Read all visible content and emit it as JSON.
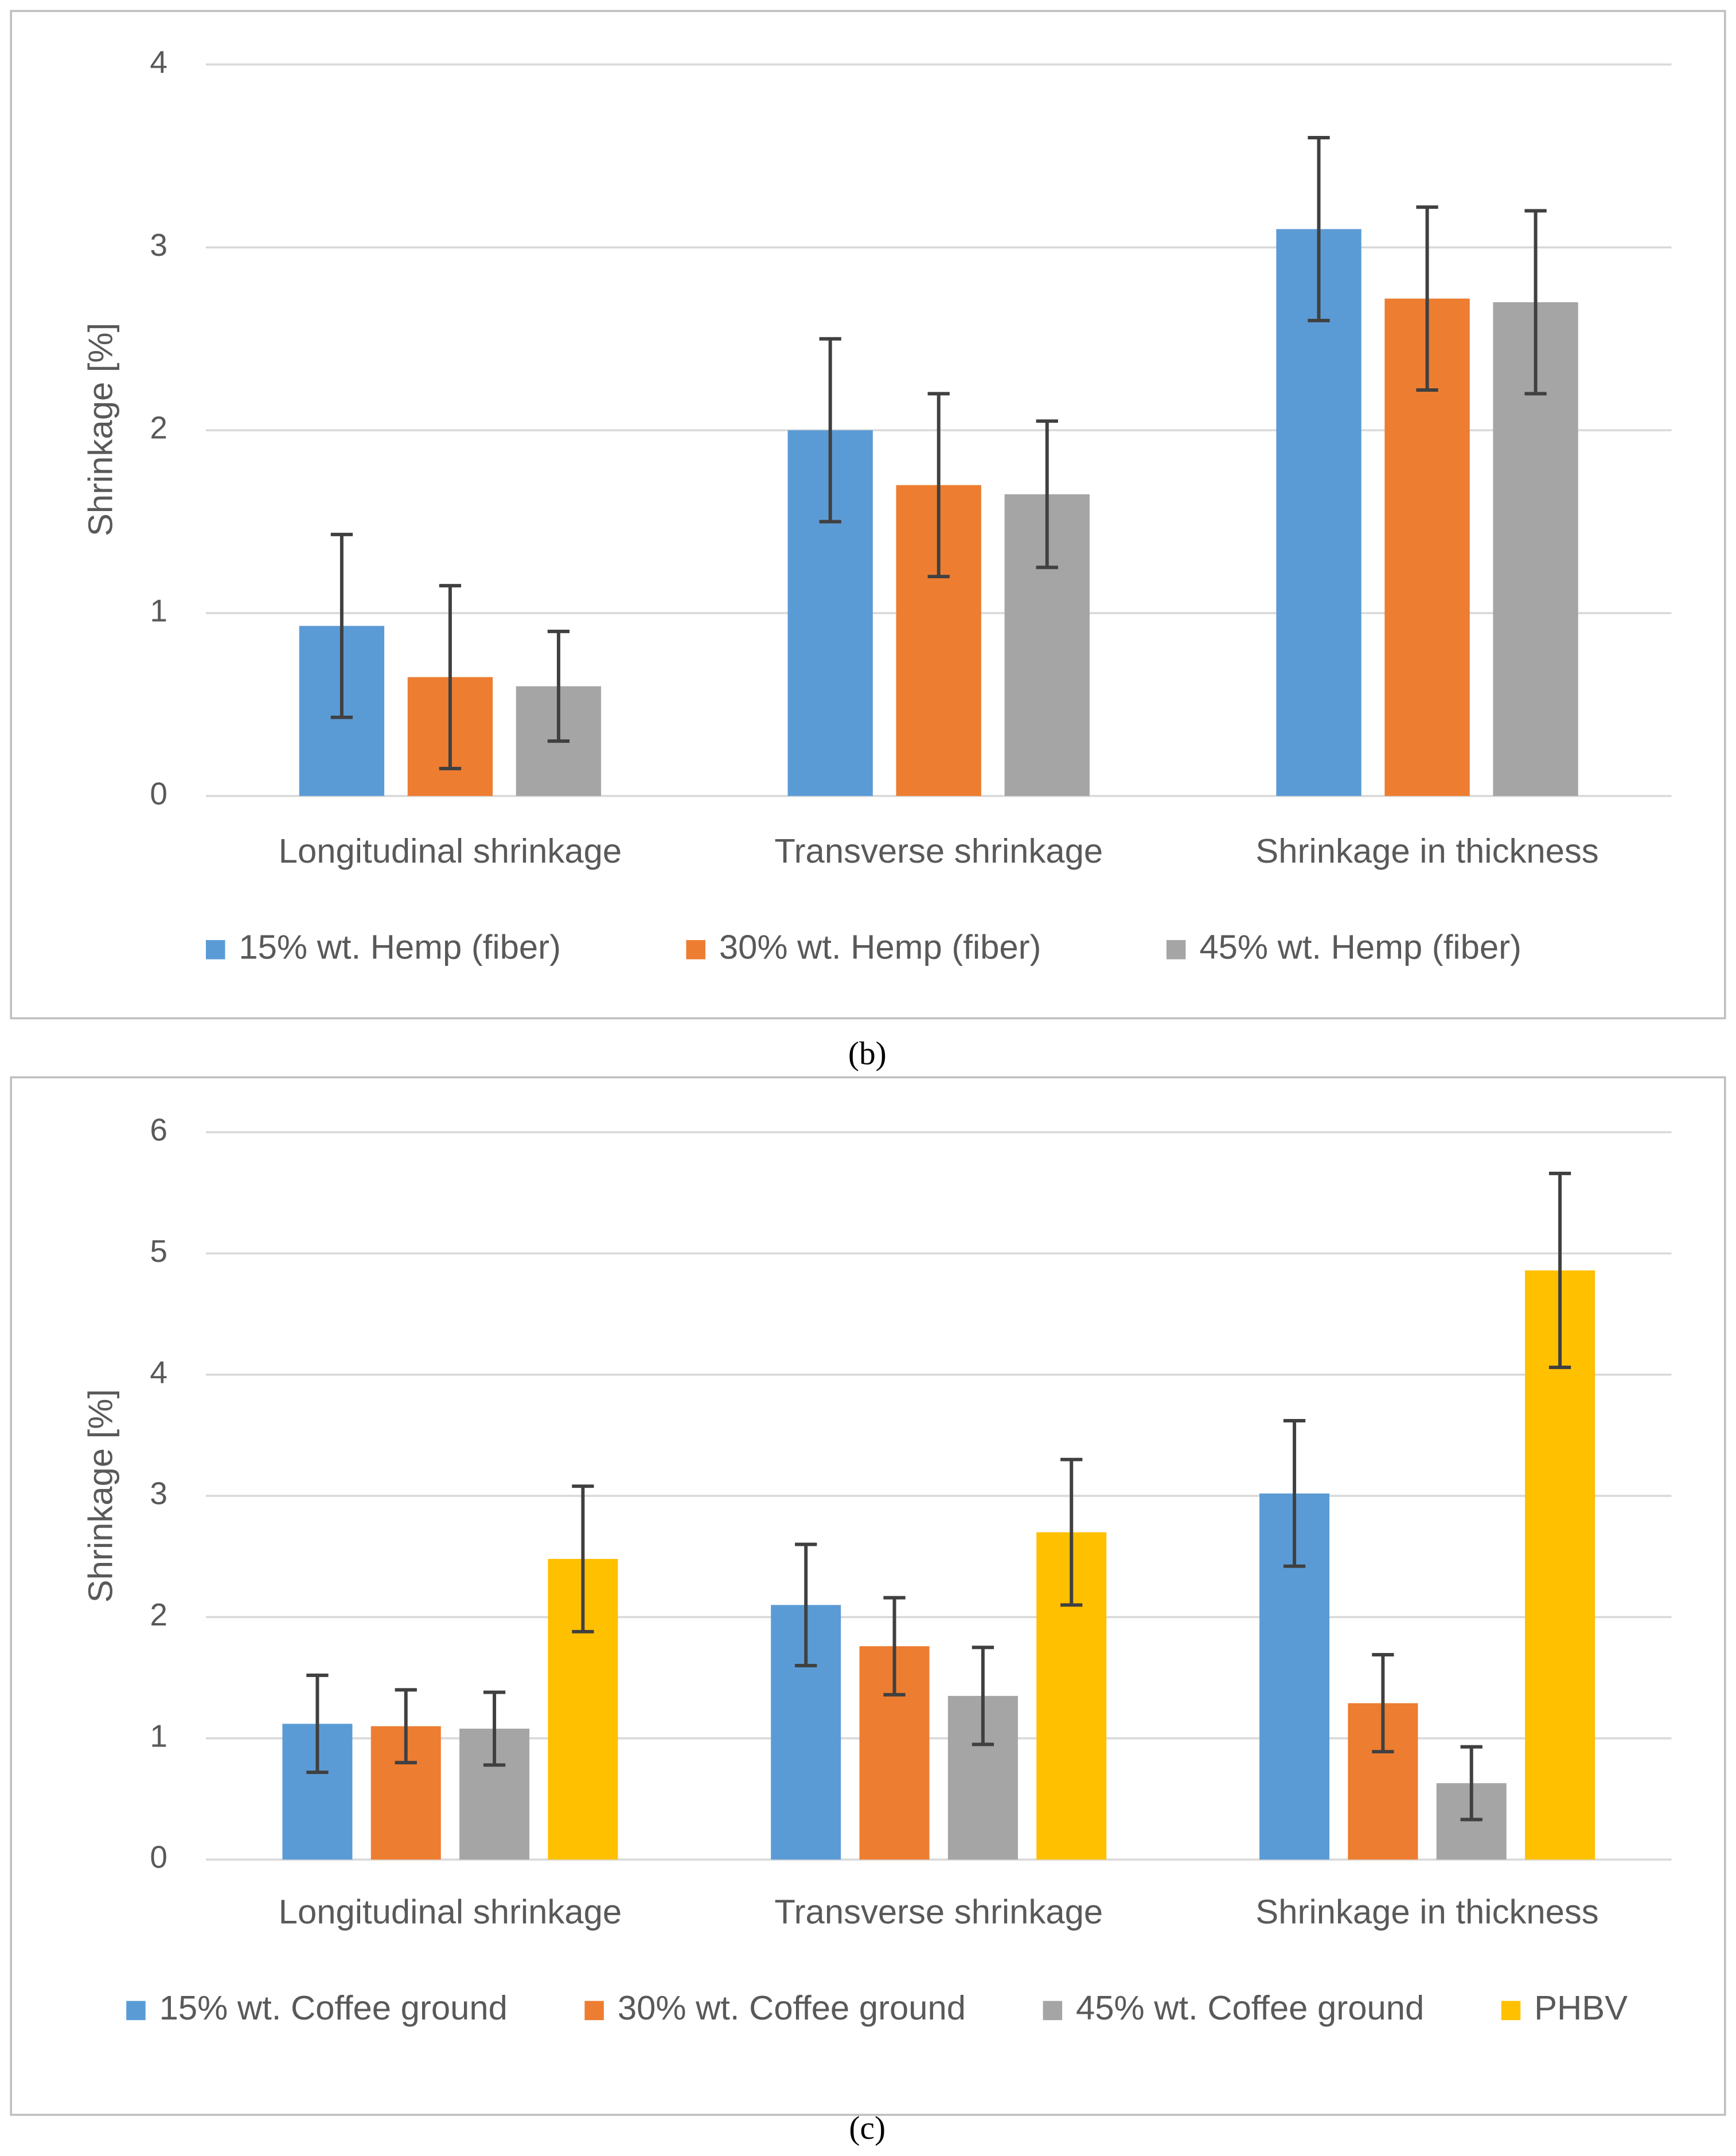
{
  "chart_data": [
    {
      "type": "bar",
      "caption": "(b)",
      "y_label": "Shrinkage [%]",
      "categories": [
        "Longitudinal shrinkage",
        "Transverse shrinkage",
        "Shrinkage in thickness"
      ],
      "series": [
        {
          "name": "15% wt. Hemp (fiber)",
          "color": "#5b9bd5",
          "values": [
            0.93,
            2.0,
            3.1
          ],
          "errors": [
            0.5,
            0.5,
            0.5
          ]
        },
        {
          "name": "30% wt. Hemp (fiber)",
          "color": "#ed7d31",
          "values": [
            0.65,
            1.7,
            2.72
          ],
          "errors": [
            0.5,
            0.5,
            0.5
          ]
        },
        {
          "name": "45% wt. Hemp (fiber)",
          "color": "#a5a5a5",
          "values": [
            0.6,
            1.65,
            2.7
          ],
          "errors": [
            0.3,
            0.4,
            0.5
          ]
        }
      ],
      "ylim": [
        0,
        4
      ],
      "yticks": [
        0,
        1,
        2,
        3,
        4
      ],
      "grid": true,
      "legend": "bottom"
    },
    {
      "type": "bar",
      "caption": "(c)",
      "y_label": "Shrinkage [%]",
      "categories": [
        "Longitudinal shrinkage",
        "Transverse shrinkage",
        "Shrinkage in thickness"
      ],
      "series": [
        {
          "name": "15% wt. Coffee ground",
          "color": "#5b9bd5",
          "values": [
            1.12,
            2.1,
            3.02
          ],
          "errors": [
            0.4,
            0.5,
            0.6
          ]
        },
        {
          "name": "30% wt. Coffee ground",
          "color": "#ed7d31",
          "values": [
            1.1,
            1.76,
            1.29
          ],
          "errors": [
            0.3,
            0.4,
            0.4
          ]
        },
        {
          "name": "45% wt. Coffee ground",
          "color": "#a5a5a5",
          "values": [
            1.08,
            1.35,
            0.63
          ],
          "errors": [
            0.3,
            0.4,
            0.3
          ]
        },
        {
          "name": "PHBV",
          "color": "#ffc000",
          "values": [
            2.48,
            2.7,
            4.86
          ],
          "errors": [
            0.6,
            0.6,
            0.8
          ]
        }
      ],
      "ylim": [
        0,
        6
      ],
      "yticks": [
        0,
        1,
        2,
        3,
        4,
        5,
        6
      ],
      "grid": true,
      "legend": "bottom"
    }
  ]
}
